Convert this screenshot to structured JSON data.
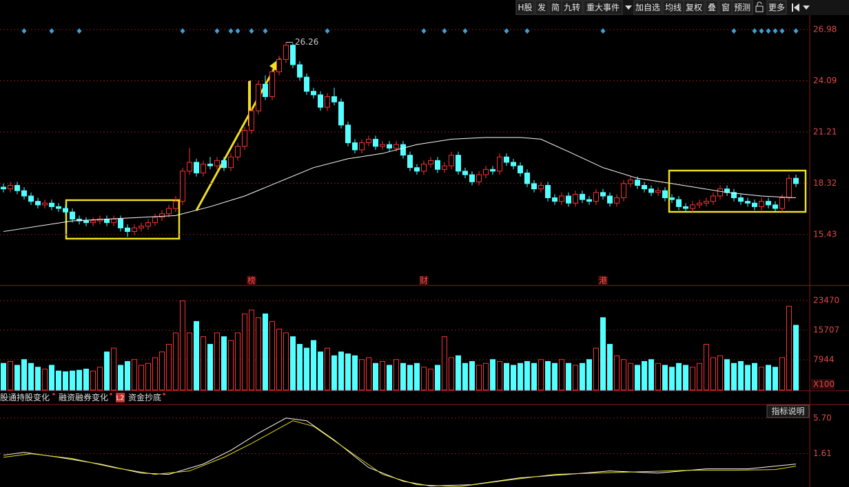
{
  "toolbar": [
    "H股",
    "发",
    "简",
    "九转",
    "重大事件",
    "加自选",
    "均线",
    "复权",
    "叠",
    "窗",
    "预测",
    "更多"
  ],
  "chart_data": {
    "type": "candlestick",
    "open": [
      18.1,
      18.0,
      18.2,
      17.9,
      17.6,
      17.3,
      17.1,
      17.2,
      17.0,
      16.9,
      16.7,
      16.3,
      16.2,
      16.1,
      16.2,
      16.3,
      16.1,
      16.3,
      15.8,
      15.6,
      15.8,
      15.9,
      16.1,
      16.4,
      16.6,
      16.9,
      17.3,
      19.0,
      19.5,
      18.9,
      19.4,
      19.3,
      19.6,
      19.2,
      19.8,
      20.4,
      21.3,
      22.4,
      23.9,
      23.2,
      24.6,
      25.3,
      26.1,
      25.0,
      24.3,
      23.5,
      23.3,
      22.6,
      23.2,
      22.9,
      21.6,
      20.6,
      20.2,
      20.6,
      20.8,
      20.4,
      20.5,
      20.3,
      20.5,
      19.9,
      19.2,
      19.0,
      19.4,
      19.6,
      19.1,
      19.3,
      19.9,
      19.0,
      18.8,
      18.4,
      18.8,
      19.1,
      19.0,
      19.8,
      19.5,
      19.3,
      18.9,
      18.3,
      18.0,
      18.2,
      17.5,
      17.3,
      17.6,
      17.2,
      17.7,
      17.4,
      17.3,
      17.8,
      17.6,
      17.2,
      17.5,
      18.3,
      18.5,
      18.2,
      18.0,
      17.8,
      17.9,
      17.5,
      17.4,
      17.0,
      16.9,
      17.1,
      17.2,
      17.3,
      17.6,
      18.0,
      17.8,
      17.5,
      17.3,
      17.2,
      17.0,
      17.3,
      17.1,
      16.9,
      17.5,
      18.6
    ],
    "high": [
      18.3,
      18.4,
      18.4,
      18.1,
      17.8,
      17.5,
      17.4,
      17.4,
      17.2,
      17.1,
      16.9,
      16.5,
      16.4,
      16.4,
      16.5,
      16.5,
      16.5,
      16.5,
      16.0,
      16.0,
      16.1,
      16.3,
      16.6,
      16.8,
      17.1,
      17.6,
      19.2,
      20.3,
      19.7,
      19.6,
      19.8,
      19.8,
      19.8,
      20.0,
      20.6,
      21.5,
      22.6,
      24.1,
      24.4,
      24.8,
      25.5,
      26.26,
      26.2,
      25.2,
      24.5,
      23.7,
      23.5,
      23.4,
      23.7,
      23.1,
      21.8,
      20.8,
      20.8,
      21.0,
      21.0,
      20.7,
      20.7,
      20.7,
      20.7,
      20.1,
      19.4,
      19.6,
      19.8,
      19.8,
      19.5,
      20.1,
      20.1,
      19.2,
      19.0,
      19.0,
      19.3,
      19.3,
      20.0,
      20.0,
      19.7,
      19.5,
      19.1,
      18.5,
      18.4,
      18.4,
      17.7,
      17.8,
      17.8,
      17.9,
      17.9,
      17.6,
      18.0,
      18.0,
      17.8,
      17.7,
      18.5,
      18.7,
      18.7,
      18.4,
      18.2,
      18.1,
      18.1,
      17.7,
      17.6,
      17.2,
      17.3,
      17.4,
      17.5,
      17.8,
      18.2,
      18.2,
      18.0,
      17.7,
      17.5,
      17.4,
      17.5,
      17.5,
      17.3,
      17.7,
      18.8,
      18.8
    ],
    "low": [
      17.8,
      17.8,
      17.7,
      17.4,
      17.1,
      16.9,
      16.9,
      16.8,
      16.7,
      16.5,
      16.1,
      16.0,
      15.9,
      15.9,
      16.0,
      15.9,
      15.9,
      15.6,
      15.3,
      15.4,
      15.6,
      15.7,
      15.9,
      16.2,
      16.4,
      16.7,
      17.1,
      18.8,
      18.7,
      18.7,
      19.1,
      19.1,
      19.0,
      19.0,
      19.6,
      20.2,
      21.1,
      22.2,
      23.0,
      23.0,
      24.4,
      25.1,
      24.8,
      24.1,
      23.3,
      23.1,
      22.4,
      22.4,
      22.7,
      21.4,
      20.4,
      20.0,
      20.0,
      20.4,
      20.2,
      20.2,
      20.1,
      20.1,
      19.7,
      19.0,
      18.8,
      18.8,
      19.2,
      18.9,
      18.9,
      19.1,
      18.8,
      18.6,
      18.2,
      18.2,
      18.6,
      18.8,
      18.8,
      19.3,
      19.1,
      18.7,
      18.1,
      17.8,
      17.8,
      17.3,
      17.1,
      17.1,
      17.0,
      17.0,
      17.2,
      17.1,
      17.1,
      17.4,
      17.0,
      17.0,
      17.3,
      18.1,
      18.0,
      17.8,
      17.6,
      17.6,
      17.3,
      17.2,
      16.8,
      16.7,
      16.7,
      16.9,
      17.0,
      17.1,
      17.4,
      17.6,
      17.3,
      17.1,
      17.0,
      16.8,
      16.8,
      16.9,
      16.7,
      16.7,
      17.3,
      18.1
    ],
    "close": [
      18.0,
      18.2,
      17.9,
      17.6,
      17.3,
      17.1,
      17.2,
      17.0,
      16.9,
      16.7,
      16.3,
      16.2,
      16.1,
      16.2,
      16.3,
      16.1,
      16.3,
      15.8,
      15.6,
      15.8,
      15.9,
      16.1,
      16.4,
      16.6,
      16.9,
      17.3,
      19.0,
      19.5,
      18.9,
      19.4,
      19.3,
      19.6,
      19.2,
      19.8,
      20.4,
      21.3,
      22.4,
      23.9,
      23.2,
      24.6,
      25.3,
      26.1,
      25.0,
      24.3,
      23.5,
      23.3,
      22.6,
      23.2,
      22.9,
      21.6,
      20.6,
      20.2,
      20.6,
      20.8,
      20.4,
      20.5,
      20.3,
      20.5,
      19.9,
      19.2,
      19.0,
      19.4,
      19.6,
      19.1,
      19.3,
      19.9,
      19.0,
      18.8,
      18.4,
      18.8,
      19.1,
      19.0,
      19.8,
      19.5,
      19.3,
      18.9,
      18.3,
      18.0,
      18.2,
      17.5,
      17.3,
      17.6,
      17.2,
      17.7,
      17.4,
      17.3,
      17.8,
      17.6,
      17.2,
      17.5,
      18.3,
      18.5,
      18.2,
      18.0,
      17.8,
      17.9,
      17.5,
      17.4,
      17.0,
      16.9,
      17.1,
      17.2,
      17.3,
      17.6,
      18.0,
      17.8,
      17.5,
      17.3,
      17.2,
      17.0,
      17.3,
      17.1,
      16.9,
      17.5,
      18.6,
      18.3
    ],
    "up_color": "#ff3232",
    "down_color": "#54ffff",
    "ylim": [
      12.56,
      27.56
    ],
    "yticks": [
      15.43,
      18.32,
      21.21,
      24.09,
      26.98
    ],
    "grid": true,
    "peak": {
      "index": 41,
      "value": 26.26
    },
    "ma": {
      "x": [
        0,
        10,
        25,
        30,
        35,
        40,
        45,
        50,
        55,
        60,
        65,
        70,
        75,
        78,
        82,
        87,
        92,
        97,
        105,
        110,
        115
      ],
      "values": [
        15.6,
        16.2,
        16.5,
        17.0,
        17.6,
        18.4,
        19.2,
        19.7,
        20.0,
        20.5,
        20.8,
        20.9,
        20.9,
        20.8,
        20.1,
        19.2,
        18.6,
        18.3,
        17.8,
        17.6,
        17.5
      ],
      "color": "#ffffff"
    },
    "events": [
      {
        "index": 36,
        "label": "榜"
      },
      {
        "index": 61,
        "label": "财"
      },
      {
        "index": 87,
        "label": "港"
      }
    ],
    "signals": [
      3,
      7,
      11,
      26,
      31,
      33,
      34,
      36,
      38,
      47,
      61,
      64,
      67,
      73,
      76,
      87,
      106,
      109,
      110,
      111,
      112,
      113,
      115
    ],
    "signal_color": "#3ca0d8"
  },
  "volume": {
    "values": [
      7000,
      7500,
      6500,
      8000,
      7000,
      6000,
      5500,
      6500,
      5000,
      4800,
      5000,
      5200,
      5500,
      5000,
      6000,
      10000,
      11000,
      6500,
      7500,
      8000,
      6500,
      7000,
      8500,
      10000,
      12000,
      15000,
      23400,
      15000,
      18000,
      14000,
      12000,
      15000,
      14000,
      13000,
      15000,
      20000,
      21000,
      19000,
      20000,
      18000,
      16000,
      15000,
      14000,
      12000,
      11000,
      13000,
      10000,
      11000,
      9000,
      10000,
      9500,
      9000,
      8000,
      8500,
      7000,
      7500,
      6500,
      8000,
      7000,
      6500,
      7000,
      6000,
      5500,
      6500,
      14000,
      8500,
      9000,
      7000,
      7500,
      6500,
      7000,
      8000,
      7500,
      7000,
      6500,
      7000,
      7500,
      7000,
      8000,
      7500,
      7000,
      8000,
      7000,
      6500,
      7000,
      8000,
      11000,
      19000,
      12000,
      9000,
      8000,
      7000,
      6500,
      7500,
      8000,
      7000,
      6500,
      6000,
      7000,
      6500,
      6000,
      7000,
      12000,
      8500,
      9000,
      8000,
      7000,
      7500,
      6500,
      7000,
      6000,
      6500,
      6000,
      8500,
      22000,
      17000
    ],
    "ylim": [
      0,
      25640
    ],
    "yticks": [
      7944,
      15707,
      23470
    ],
    "unit": "X100"
  },
  "tabs": [
    "股通持股变化",
    "融资融券变化",
    "资金抄底"
  ],
  "l2": "L2",
  "help": "指标说明",
  "indicator": {
    "ylim": [
      -2.2,
      7.1
    ],
    "yticks": [
      1.61,
      {
        "value": 5.7,
        "label": "5.70"
      }
    ],
    "series": [
      {
        "color": "#ffffff",
        "x": [
          0,
          3,
          8,
          14,
          20,
          24,
          29,
          33,
          37,
          41,
          44,
          48,
          53,
          58,
          62,
          68,
          75,
          82,
          88,
          95,
          102,
          108,
          115
        ],
        "values": [
          1.45,
          1.77,
          1.21,
          0.43,
          -0.6,
          -0.75,
          0.43,
          2.0,
          3.97,
          5.7,
          5.39,
          3.18,
          0.03,
          -1.54,
          -2.09,
          -1.93,
          -1.15,
          -0.75,
          -0.36,
          -0.6,
          -0.12,
          -0.12,
          0.43
        ]
      },
      {
        "color": "#e8e020",
        "x": [
          0,
          4,
          10,
          16,
          22,
          27,
          32,
          36,
          42,
          45,
          50,
          55,
          60,
          66,
          72,
          80,
          86,
          93,
          100,
          106,
          112,
          115
        ],
        "values": [
          1.21,
          1.61,
          1.06,
          0.03,
          -0.75,
          -0.36,
          1.21,
          2.79,
          5.39,
          4.76,
          2.0,
          -0.75,
          -1.93,
          -2.17,
          -1.54,
          -0.75,
          -0.6,
          -0.44,
          -0.28,
          -0.28,
          -0.2,
          0.19
        ]
      }
    ]
  }
}
